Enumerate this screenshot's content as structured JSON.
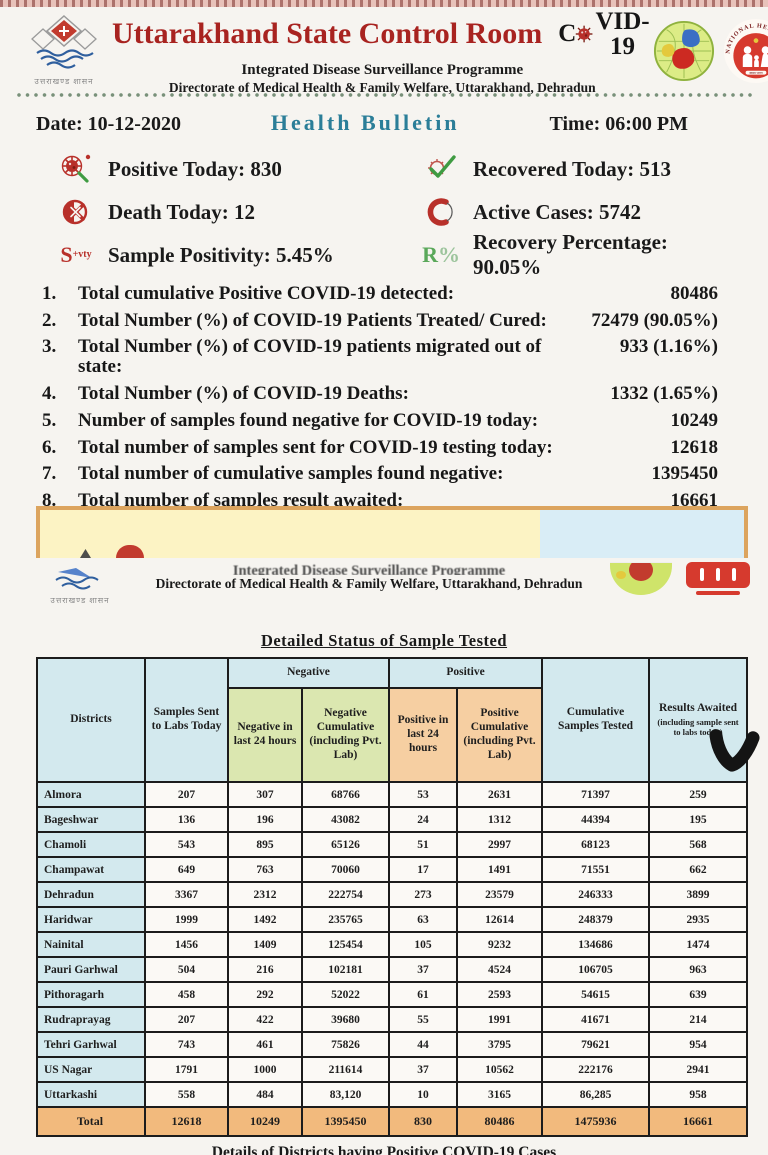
{
  "theme": {
    "title_red": "#a82320",
    "bulletin_teal": "#2b7e98",
    "dots_green": "#79917a",
    "header_blue": "#d3e9ee",
    "negative_green": "#dbe7b0",
    "positive_peach": "#f6cfa2",
    "total_orange": "#f2ba7d",
    "band_yellow": "#fcf3c4",
    "band_blue": "#d9edf6",
    "band_border": "#dca45e"
  },
  "header": {
    "title": "Uttarakhand State Control Room",
    "covid_prefix": "C",
    "covid_suffix": "VID-19",
    "subtitle1": "Integrated Disease Surveillance Programme",
    "subtitle2": "Directorate of Medical Health & Family Welfare, Uttarakhand, Dehradun",
    "emblem_caption": "उत्तराखण्ड शासन"
  },
  "bulletin": {
    "date": "Date: 10-12-2020",
    "title": "Health Bulletin",
    "time": "Time: 06:00 PM"
  },
  "stats": [
    {
      "label": "Positive Today:",
      "value": "830"
    },
    {
      "label": "Recovered Today:",
      "value": "513"
    },
    {
      "label": "Death Today:",
      "value": "12"
    },
    {
      "label": "Active Cases:",
      "value": "5742"
    },
    {
      "label": "Sample Positivity:",
      "value": "5.45%",
      "icon_text": "S",
      "icon_sup": "+vty"
    },
    {
      "label": "Recovery Percentage:",
      "value": "90.05%",
      "icon_text": "R",
      "icon_sup": "%"
    }
  ],
  "summary_list": [
    {
      "num": "1.",
      "text": "Total cumulative Positive COVID-19 detected:",
      "value": "80486"
    },
    {
      "num": "2.",
      "text": "Total Number (%) of COVID-19 Patients Treated/ Cured:",
      "value": "72479 (90.05%)"
    },
    {
      "num": "3.",
      "text": "Total Number (%) of COVID-19 patients migrated out of state:",
      "value": "933 (1.16%)"
    },
    {
      "num": "4.",
      "text": "Total Number (%) of COVID-19 Deaths:",
      "value": "1332 (1.65%)"
    },
    {
      "num": "5.",
      "text": "Number of samples found negative for COVID-19 today:",
      "value": "10249"
    },
    {
      "num": "6.",
      "text": "Total number of samples sent for COVID-19 testing today:",
      "value": "12618"
    },
    {
      "num": "7.",
      "text": "Total number of cumulative samples found negative:",
      "value": "1395450"
    },
    {
      "num": "8.",
      "text": "Total number of samples result awaited:",
      "value": "16661"
    }
  ],
  "header2": {
    "line1": "Integrated Disease Surveillance Programme",
    "line2": "Directorate of Medical Health & Family Welfare, Uttarakhand, Dehradun",
    "emblem_caption": "उत्तराखण्ड शासन"
  },
  "table": {
    "title": "Detailed Status of Sample Tested",
    "headers": {
      "districts": "Districts",
      "samples": "Samples Sent to Labs Today",
      "negative_group": "Negative",
      "negative_24": "Negative in last 24 hours",
      "negative_cum": "Negative Cumulative (including Pvt. Lab)",
      "positive_group": "Positive",
      "positive_24": "Positive in last 24 hours",
      "positive_cum": "Positive Cumulative (including Pvt. Lab)",
      "cumulative": "Cumulative Samples Tested",
      "results": "Results Awaited",
      "results_note": "(including sample sent to labs today)"
    },
    "rows": [
      {
        "name": "Almora",
        "values": [
          "207",
          "307",
          "68766",
          "53",
          "2631",
          "71397",
          "259"
        ]
      },
      {
        "name": "Bageshwar",
        "values": [
          "136",
          "196",
          "43082",
          "24",
          "1312",
          "44394",
          "195"
        ]
      },
      {
        "name": "Chamoli",
        "values": [
          "543",
          "895",
          "65126",
          "51",
          "2997",
          "68123",
          "568"
        ]
      },
      {
        "name": "Champawat",
        "values": [
          "649",
          "763",
          "70060",
          "17",
          "1491",
          "71551",
          "662"
        ]
      },
      {
        "name": "Dehradun",
        "values": [
          "3367",
          "2312",
          "222754",
          "273",
          "23579",
          "246333",
          "3899"
        ]
      },
      {
        "name": "Haridwar",
        "values": [
          "1999",
          "1492",
          "235765",
          "63",
          "12614",
          "248379",
          "2935"
        ]
      },
      {
        "name": "Nainital",
        "values": [
          "1456",
          "1409",
          "125454",
          "105",
          "9232",
          "134686",
          "1474"
        ]
      },
      {
        "name": "Pauri Garhwal",
        "values": [
          "504",
          "216",
          "102181",
          "37",
          "4524",
          "106705",
          "963"
        ]
      },
      {
        "name": "Pithoragarh",
        "values": [
          "458",
          "292",
          "52022",
          "61",
          "2593",
          "54615",
          "639"
        ]
      },
      {
        "name": "Rudraprayag",
        "values": [
          "207",
          "422",
          "39680",
          "55",
          "1991",
          "41671",
          "214"
        ]
      },
      {
        "name": "Tehri Garhwal",
        "values": [
          "743",
          "461",
          "75826",
          "44",
          "3795",
          "79621",
          "954"
        ]
      },
      {
        "name": "US Nagar",
        "values": [
          "1791",
          "1000",
          "211614",
          "37",
          "10562",
          "222176",
          "2941"
        ]
      },
      {
        "name": "Uttarkashi",
        "values": [
          "558",
          "484",
          "83,120",
          "10",
          "3165",
          "86,285",
          "958"
        ]
      }
    ],
    "total": {
      "name": "Total",
      "values": [
        "12618",
        "10249",
        "1395450",
        "830",
        "80486",
        "1475936",
        "16661"
      ]
    }
  },
  "footer_cut": "Details of Districts having Positive COVID-19 Cases"
}
